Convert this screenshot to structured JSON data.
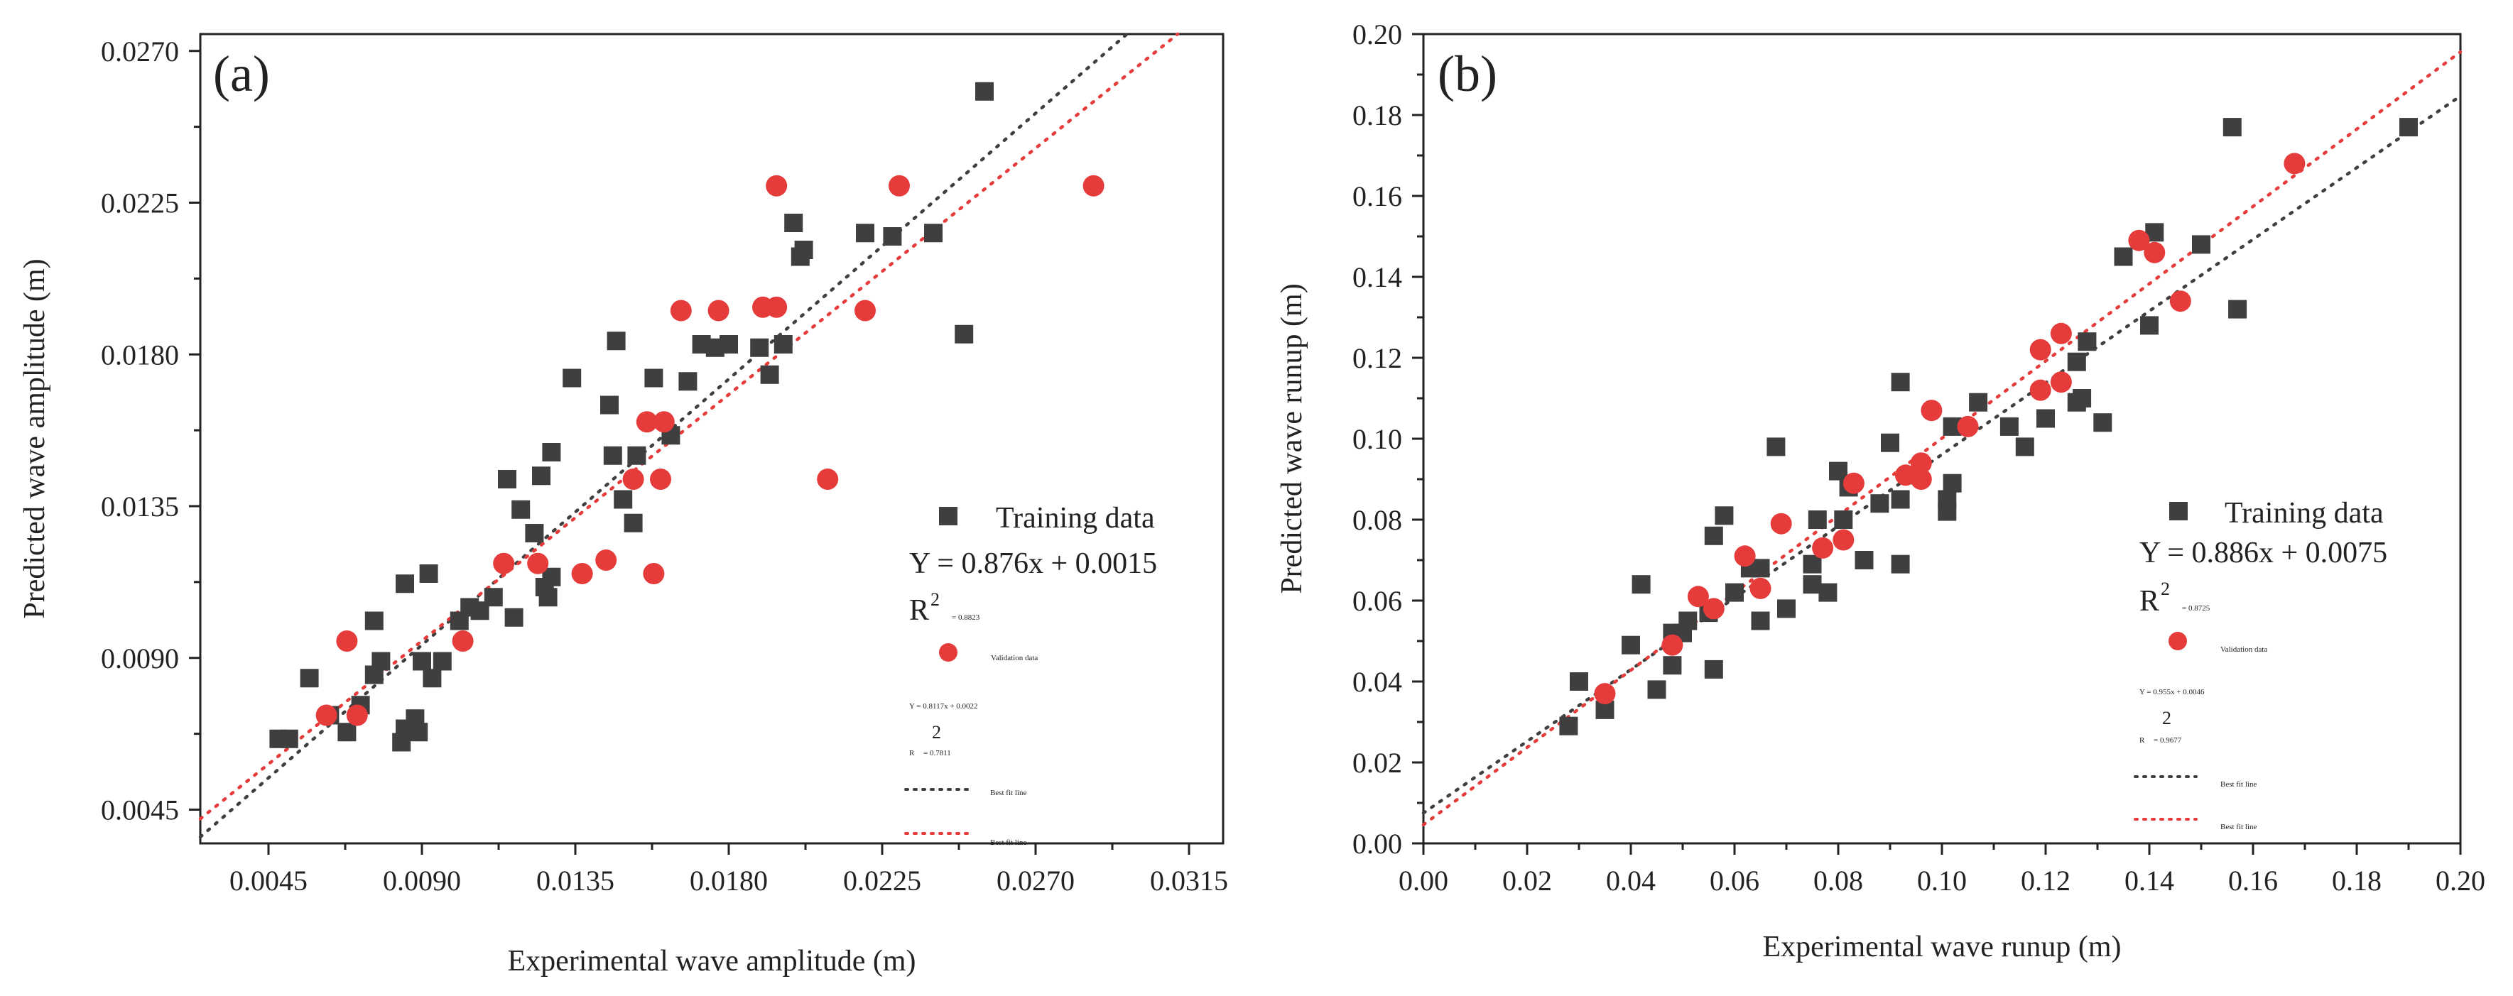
{
  "colors": {
    "training": "#3f3f3f",
    "validation": "#e63b3b",
    "training_fit": "#3f3f3f",
    "validation_fit": "#e63b3b"
  },
  "chart_data": [
    {
      "type": "scatter",
      "panel_label": "(a)",
      "xlabel": "Experimental wave amplitude (m)",
      "ylabel": "Predicted wave amplitude (m)",
      "xlim": [
        0.0025,
        0.0325
      ],
      "ylim": [
        0.0035,
        0.0275
      ],
      "xticks": [
        0.0045,
        0.009,
        0.0135,
        0.018,
        0.0225,
        0.027,
        0.0315
      ],
      "xtick_labels": [
        "0.0045",
        "0.0090",
        "0.0135",
        "0.0180",
        "0.0225",
        "0.0270",
        "0.0315"
      ],
      "yticks": [
        0.0045,
        0.009,
        0.0135,
        0.018,
        0.0225,
        0.027
      ],
      "ytick_labels": [
        "0.0045",
        "0.0090",
        "0.0135",
        "0.0180",
        "0.0225",
        "0.0270"
      ],
      "series": [
        {
          "name": "Training data",
          "marker": "square",
          "points": [
            [
              0.0048,
              0.0066
            ],
            [
              0.0051,
              0.0066
            ],
            [
              0.0057,
              0.0084
            ],
            [
              0.0063,
              0.0073
            ],
            [
              0.0068,
              0.0068
            ],
            [
              0.0072,
              0.0076
            ],
            [
              0.0076,
              0.0101
            ],
            [
              0.0078,
              0.0089
            ],
            [
              0.0076,
              0.0085
            ],
            [
              0.0084,
              0.0065
            ],
            [
              0.0085,
              0.0069
            ],
            [
              0.0085,
              0.0112
            ],
            [
              0.0088,
              0.0072
            ],
            [
              0.0089,
              0.0068
            ],
            [
              0.009,
              0.0089
            ],
            [
              0.0092,
              0.0115
            ],
            [
              0.0093,
              0.0084
            ],
            [
              0.0096,
              0.0089
            ],
            [
              0.0101,
              0.0101
            ],
            [
              0.0104,
              0.0105
            ],
            [
              0.0107,
              0.0104
            ],
            [
              0.0111,
              0.0108
            ],
            [
              0.0115,
              0.0143
            ],
            [
              0.0117,
              0.0102
            ],
            [
              0.0119,
              0.0134
            ],
            [
              0.0123,
              0.0127
            ],
            [
              0.0125,
              0.0144
            ],
            [
              0.0126,
              0.0111
            ],
            [
              0.0127,
              0.0108
            ],
            [
              0.0128,
              0.0114
            ],
            [
              0.0128,
              0.0151
            ],
            [
              0.0134,
              0.0173
            ],
            [
              0.0145,
              0.0165
            ],
            [
              0.0146,
              0.015
            ],
            [
              0.0147,
              0.0184
            ],
            [
              0.0149,
              0.0137
            ],
            [
              0.0152,
              0.013
            ],
            [
              0.0153,
              0.015
            ],
            [
              0.0158,
              0.0173
            ],
            [
              0.0163,
              0.0156
            ],
            [
              0.0168,
              0.0172
            ],
            [
              0.0172,
              0.0183
            ],
            [
              0.0176,
              0.0182
            ],
            [
              0.018,
              0.0183
            ],
            [
              0.0189,
              0.0182
            ],
            [
              0.0192,
              0.0174
            ],
            [
              0.0196,
              0.0183
            ],
            [
              0.0199,
              0.0219
            ],
            [
              0.0201,
              0.0209
            ],
            [
              0.0202,
              0.0211
            ],
            [
              0.022,
              0.0216
            ],
            [
              0.0228,
              0.0215
            ],
            [
              0.024,
              0.0216
            ],
            [
              0.0249,
              0.0186
            ],
            [
              0.0255,
              0.0258
            ]
          ]
        },
        {
          "name": "Validation data",
          "marker": "circle",
          "points": [
            [
              0.0062,
              0.0073
            ],
            [
              0.0068,
              0.0095
            ],
            [
              0.0071,
              0.0073
            ],
            [
              0.0102,
              0.0095
            ],
            [
              0.0114,
              0.0118
            ],
            [
              0.0124,
              0.0118
            ],
            [
              0.0137,
              0.0115
            ],
            [
              0.0144,
              0.0119
            ],
            [
              0.0152,
              0.0143
            ],
            [
              0.0156,
              0.016
            ],
            [
              0.0158,
              0.0115
            ],
            [
              0.016,
              0.0143
            ],
            [
              0.0161,
              0.016
            ],
            [
              0.0166,
              0.0193
            ],
            [
              0.0177,
              0.0193
            ],
            [
              0.019,
              0.0194
            ],
            [
              0.0194,
              0.0194
            ],
            [
              0.0194,
              0.023
            ],
            [
              0.0209,
              0.0143
            ],
            [
              0.022,
              0.0193
            ],
            [
              0.023,
              0.023
            ],
            [
              0.0287,
              0.023
            ]
          ]
        }
      ],
      "fit_lines": [
        {
          "series": "Training data",
          "slope": 0.876,
          "intercept": 0.0015,
          "x_range": [
            0.0025,
            0.0325
          ]
        },
        {
          "series": "Validation data",
          "slope": 0.8117,
          "intercept": 0.0022,
          "x_range": [
            0.0025,
            0.0325
          ]
        }
      ],
      "legend": {
        "training_label": "Training data",
        "training_equation": "Y = 0.876x + 0.0015",
        "training_r_symbol": "R",
        "training_r_exp": "2",
        "training_r_value": "= 0.8823",
        "validation_label": "Validation data",
        "validation_equation": "Y = 0.8117x + 0.0022",
        "validation_r_exp": "2",
        "validation_r_symbol": "R",
        "validation_r_value": "= 0.7811",
        "fit_label_1": "Best fit line",
        "fit_label_2": "Best fit line"
      }
    },
    {
      "type": "scatter",
      "panel_label": "(b)",
      "xlabel": "Experimental wave runup (m)",
      "ylabel": "Predicted wave runup (m)",
      "xlim": [
        0.0,
        0.2
      ],
      "ylim": [
        0.0,
        0.2
      ],
      "xticks": [
        0.0,
        0.02,
        0.04,
        0.06,
        0.08,
        0.1,
        0.12,
        0.14,
        0.16,
        0.18,
        0.2
      ],
      "xtick_labels": [
        "0.00",
        "0.02",
        "0.04",
        "0.06",
        "0.08",
        "0.10",
        "0.12",
        "0.14",
        "0.16",
        "0.18",
        "0.20"
      ],
      "yticks": [
        0.0,
        0.02,
        0.04,
        0.06,
        0.08,
        0.1,
        0.12,
        0.14,
        0.16,
        0.18,
        0.2
      ],
      "ytick_labels": [
        "0.00",
        "0.02",
        "0.04",
        "0.06",
        "0.08",
        "0.10",
        "0.12",
        "0.14",
        "0.16",
        "0.18",
        "0.20"
      ],
      "series": [
        {
          "name": "Training data",
          "marker": "square",
          "points": [
            [
              0.028,
              0.029
            ],
            [
              0.03,
              0.04
            ],
            [
              0.035,
              0.033
            ],
            [
              0.04,
              0.049
            ],
            [
              0.042,
              0.064
            ],
            [
              0.045,
              0.038
            ],
            [
              0.048,
              0.044
            ],
            [
              0.048,
              0.052
            ],
            [
              0.05,
              0.052
            ],
            [
              0.051,
              0.055
            ],
            [
              0.055,
              0.057
            ],
            [
              0.056,
              0.043
            ],
            [
              0.056,
              0.076
            ],
            [
              0.058,
              0.081
            ],
            [
              0.06,
              0.062
            ],
            [
              0.063,
              0.068
            ],
            [
              0.065,
              0.055
            ],
            [
              0.065,
              0.068
            ],
            [
              0.068,
              0.098
            ],
            [
              0.07,
              0.058
            ],
            [
              0.075,
              0.064
            ],
            [
              0.075,
              0.069
            ],
            [
              0.076,
              0.08
            ],
            [
              0.078,
              0.062
            ],
            [
              0.08,
              0.092
            ],
            [
              0.081,
              0.08
            ],
            [
              0.082,
              0.088
            ],
            [
              0.085,
              0.07
            ],
            [
              0.088,
              0.084
            ],
            [
              0.09,
              0.099
            ],
            [
              0.092,
              0.069
            ],
            [
              0.092,
              0.085
            ],
            [
              0.092,
              0.114
            ],
            [
              0.094,
              0.091
            ],
            [
              0.101,
              0.082
            ],
            [
              0.101,
              0.085
            ],
            [
              0.102,
              0.089
            ],
            [
              0.102,
              0.103
            ],
            [
              0.107,
              0.109
            ],
            [
              0.113,
              0.103
            ],
            [
              0.116,
              0.098
            ],
            [
              0.12,
              0.105
            ],
            [
              0.126,
              0.109
            ],
            [
              0.126,
              0.119
            ],
            [
              0.127,
              0.11
            ],
            [
              0.128,
              0.124
            ],
            [
              0.131,
              0.104
            ],
            [
              0.135,
              0.145
            ],
            [
              0.14,
              0.128
            ],
            [
              0.141,
              0.151
            ],
            [
              0.15,
              0.148
            ],
            [
              0.156,
              0.177
            ],
            [
              0.157,
              0.132
            ],
            [
              0.19,
              0.177
            ]
          ]
        },
        {
          "name": "Validation data",
          "marker": "circle",
          "points": [
            [
              0.035,
              0.037
            ],
            [
              0.048,
              0.049
            ],
            [
              0.053,
              0.061
            ],
            [
              0.056,
              0.058
            ],
            [
              0.062,
              0.071
            ],
            [
              0.065,
              0.063
            ],
            [
              0.069,
              0.079
            ],
            [
              0.077,
              0.073
            ],
            [
              0.081,
              0.075
            ],
            [
              0.083,
              0.089
            ],
            [
              0.093,
              0.091
            ],
            [
              0.096,
              0.09
            ],
            [
              0.096,
              0.094
            ],
            [
              0.098,
              0.107
            ],
            [
              0.105,
              0.103
            ],
            [
              0.119,
              0.112
            ],
            [
              0.119,
              0.122
            ],
            [
              0.123,
              0.114
            ],
            [
              0.123,
              0.126
            ],
            [
              0.138,
              0.149
            ],
            [
              0.141,
              0.146
            ],
            [
              0.146,
              0.134
            ],
            [
              0.168,
              0.168
            ]
          ]
        }
      ],
      "fit_lines": [
        {
          "series": "Training data",
          "slope": 0.886,
          "intercept": 0.0075,
          "x_range": [
            0.0,
            0.2
          ]
        },
        {
          "series": "Validation data",
          "slope": 0.955,
          "intercept": 0.0046,
          "x_range": [
            0.0,
            0.2
          ]
        }
      ],
      "legend": {
        "training_label": "Training data",
        "training_equation": "Y = 0.886x + 0.0075",
        "training_r_symbol": "R",
        "training_r_exp": "2",
        "training_r_value": "= 0.8725",
        "validation_label": "Validation data",
        "validation_equation": "Y = 0.955x + 0.0046",
        "validation_r_exp": "2",
        "validation_r_symbol": "R",
        "validation_r_value": "= 0.9677",
        "fit_label_1": "Best fit line",
        "fit_label_2": "Best fit line"
      }
    }
  ]
}
